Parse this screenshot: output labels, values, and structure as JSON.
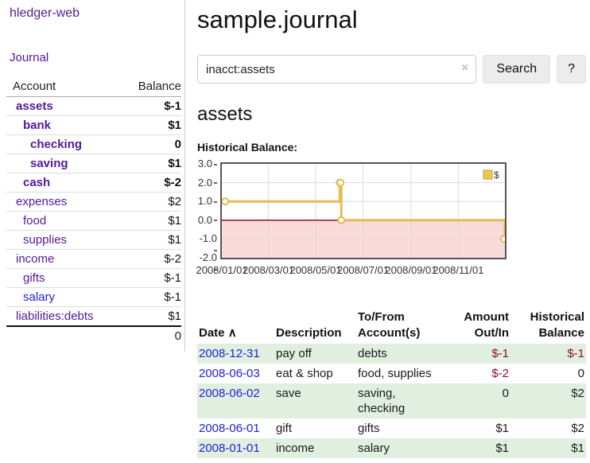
{
  "app": {
    "brand": "hledger-web",
    "nav_journal": "Journal"
  },
  "sidebar": {
    "accounts_table": {
      "col_account": "Account",
      "col_balance": "Balance",
      "rows": [
        {
          "name": "assets",
          "balance": "$-1",
          "depth": 0,
          "selected": true,
          "negative": "strong",
          "link_style": "visited"
        },
        {
          "name": "bank",
          "balance": "$1",
          "depth": 1,
          "selected": true,
          "negative": "none",
          "link_style": "visited"
        },
        {
          "name": "checking",
          "balance": "0",
          "depth": 2,
          "selected": true,
          "negative": "none",
          "link_style": "visited"
        },
        {
          "name": "saving",
          "balance": "$1",
          "depth": 2,
          "selected": true,
          "negative": "none",
          "link_style": "visited"
        },
        {
          "name": "cash",
          "balance": "$-2",
          "depth": 1,
          "selected": true,
          "negative": "strong",
          "link_style": "visited"
        },
        {
          "name": "expenses",
          "balance": "$2",
          "depth": 0,
          "selected": false,
          "negative": "none",
          "link_style": "visited"
        },
        {
          "name": "food",
          "balance": "$1",
          "depth": 1,
          "selected": false,
          "negative": "none",
          "link_style": "visited"
        },
        {
          "name": "supplies",
          "balance": "$1",
          "depth": 1,
          "selected": false,
          "negative": "none",
          "link_style": "visited"
        },
        {
          "name": "income",
          "balance": "$-2",
          "depth": 0,
          "selected": false,
          "negative": "soft",
          "link_style": "visited"
        },
        {
          "name": "gifts",
          "balance": "$-1",
          "depth": 1,
          "selected": false,
          "negative": "soft",
          "link_style": "visited"
        },
        {
          "name": "salary",
          "balance": "$-1",
          "depth": 1,
          "selected": false,
          "negative": "soft",
          "link_style": "unvisited"
        },
        {
          "name": "liabilities:debts",
          "balance": "$1",
          "depth": 0,
          "selected": false,
          "negative": "none",
          "link_style": "visited"
        }
      ],
      "total": "0"
    }
  },
  "header": {
    "title": "sample.journal"
  },
  "search": {
    "query": "inacct:assets",
    "clear_icon": "×",
    "search_label": "Search",
    "help_label": "?"
  },
  "account_page": {
    "heading": "assets",
    "chart_title": "Historical Balance:"
  },
  "chart_data": {
    "type": "line",
    "step": true,
    "title": "Historical Balance:",
    "legend": [
      "$"
    ],
    "legend_position": "top-right",
    "grid": true,
    "ylim": [
      -2.0,
      3.0
    ],
    "y_tick_labels": [
      "3.0",
      "2.0",
      "1.0",
      "0.0",
      "-1.0",
      "-2.0"
    ],
    "x_tick_labels": [
      "2008/01/01",
      "2008/03/01",
      "2008/05/01",
      "2008/07/01",
      "2008/09/01",
      "2008/11/01"
    ],
    "x_range": [
      "2008-01-01",
      "2008-12-31"
    ],
    "negative_region_shaded": true,
    "series": [
      {
        "name": "$",
        "points": [
          {
            "x": "2008-01-01",
            "y": 1
          },
          {
            "x": "2008-06-01",
            "y": 2
          },
          {
            "x": "2008-06-02",
            "y": 2
          },
          {
            "x": "2008-06-03",
            "y": 0
          },
          {
            "x": "2008-12-31",
            "y": -1
          }
        ]
      }
    ],
    "colors": {
      "line": "#e3bc52",
      "marker_fill": "#ffffff",
      "negative_fill": "#fbdada",
      "zero_line": "#8b0000",
      "gridline": "#dcdcdc",
      "border": "#555555",
      "legend_fill": "#eac74f",
      "legend_border": "#bfa02f"
    }
  },
  "register": {
    "columns": [
      "Date",
      "Description",
      "To/From Account(s)",
      "Amount Out/In",
      "Historical Balance"
    ],
    "sort_icon": "∧",
    "rows": [
      {
        "date": "2008-12-31",
        "description": "pay off",
        "accounts": "debts",
        "amount": "$-1",
        "balance": "$-1",
        "amount_negative": true,
        "balance_negative": true
      },
      {
        "date": "2008-06-03",
        "description": "eat & shop",
        "accounts": "food, supplies",
        "amount": "$-2",
        "balance": "0",
        "amount_negative": true,
        "balance_negative": false
      },
      {
        "date": "2008-06-02",
        "description": "save",
        "accounts": "saving, checking",
        "amount": "0",
        "balance": "$2",
        "amount_negative": false,
        "balance_negative": false
      },
      {
        "date": "2008-06-01",
        "description": "gift",
        "accounts": "gifts",
        "amount": "$1",
        "balance": "$2",
        "amount_negative": false,
        "balance_negative": false
      },
      {
        "date": "2008-01-01",
        "description": "income",
        "accounts": "salary",
        "amount": "$1",
        "balance": "$1",
        "amount_negative": false,
        "balance_negative": false
      }
    ]
  }
}
